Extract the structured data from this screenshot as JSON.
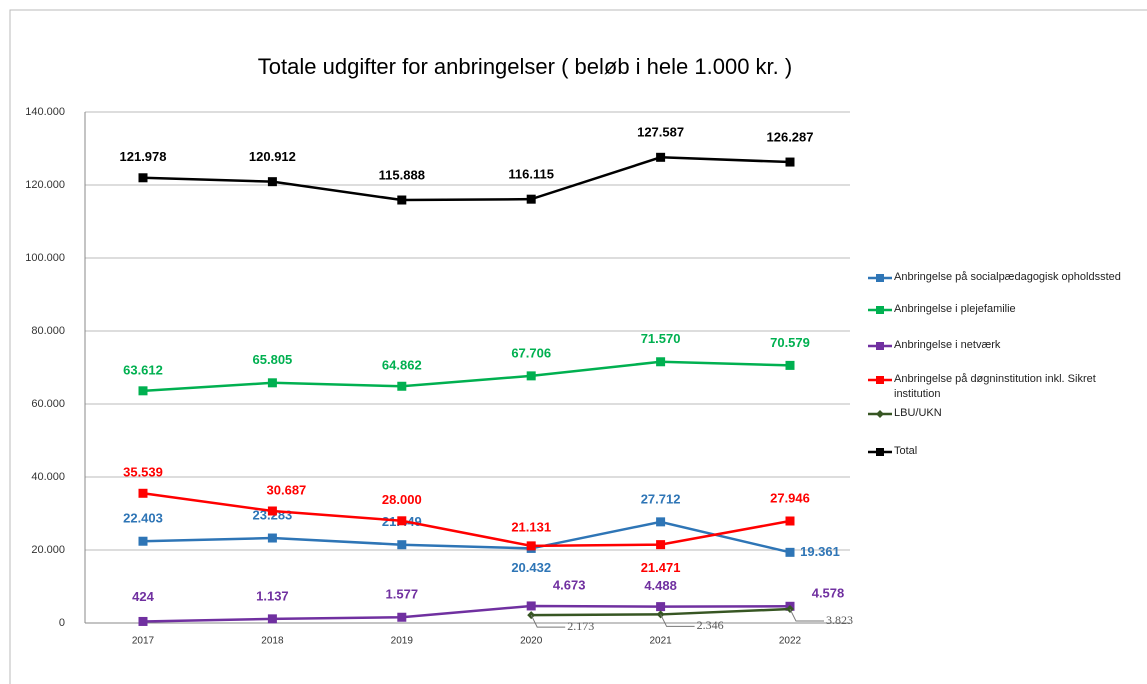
{
  "chart_data": {
    "type": "line",
    "title": "Totale udgifter for anbringelser ( beløb i hele 1.000 kr. )",
    "categories": [
      "2017",
      "2018",
      "2019",
      "2020",
      "2021",
      "2022"
    ],
    "ylim": [
      0,
      140000
    ],
    "yticks": [
      0,
      {
        "value": 20000,
        "label": "20.000"
      },
      {
        "value": 40000,
        "label": "40.000"
      },
      {
        "value": 60000,
        "label": "60.000"
      },
      {
        "value": 80000,
        "label": "80.000"
      },
      {
        "value": 100000,
        "label": "100.000"
      },
      {
        "value": 120000,
        "label": "120.000"
      },
      {
        "value": 140000,
        "label": "140.000"
      }
    ],
    "grid": true,
    "legend": "right",
    "series": [
      {
        "name": "Anbringelse på socialpædagogisk opholdssted",
        "color": "#2e75b6",
        "values": [
          22403,
          23283,
          21449,
          20432,
          27712,
          19361
        ],
        "value_labels": [
          "22.403",
          "23.283",
          "21.449",
          "20.432",
          "27.712",
          "19.361"
        ]
      },
      {
        "name": "Anbringelse i plejefamilie",
        "color": "#00b050",
        "values": [
          63612,
          65805,
          64862,
          67706,
          71570,
          70579
        ],
        "value_labels": [
          "63.612",
          "65.805",
          "64.862",
          "67.706",
          "71.570",
          "70.579"
        ]
      },
      {
        "name": "Anbringelse i netværk",
        "color": "#7030a0",
        "values": [
          424,
          1137,
          1577,
          4673,
          4488,
          4578
        ],
        "value_labels": [
          "424",
          "1.137",
          "1.577",
          "4.673",
          "4.488",
          "4.578"
        ]
      },
      {
        "name": "Anbringelse på døgninstitution inkl. Sikret institution",
        "color": "#ff0000",
        "values": [
          35539,
          30687,
          28000,
          21131,
          21471,
          27946
        ],
        "value_labels": [
          "35.539",
          "30.687",
          "28.000",
          "21.131",
          "21.471",
          "27.946"
        ]
      },
      {
        "name": "LBU/UKN",
        "color": "#375623",
        "values": [
          null,
          null,
          null,
          2173,
          2346,
          3823
        ],
        "value_labels": [
          null,
          null,
          null,
          "2.173",
          "2.346",
          "3.823"
        ]
      },
      {
        "name": "Total",
        "color": "#000000",
        "values": [
          121978,
          120912,
          115888,
          116115,
          127587,
          126287
        ],
        "value_labels": [
          "121.978",
          "120.912",
          "115.888",
          "116.115",
          "127.587",
          "126.287"
        ]
      }
    ]
  }
}
